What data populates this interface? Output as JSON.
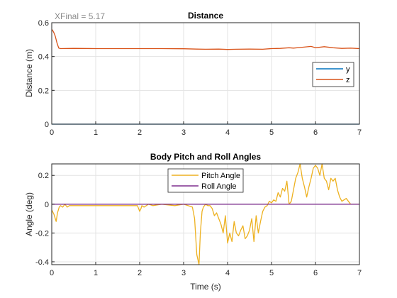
{
  "chart_data": [
    {
      "type": "line",
      "title": "Distance",
      "annotation": "XFinal = 5.17",
      "xlabel": "",
      "ylabel": "Distance (m)",
      "xlim": [
        0,
        7
      ],
      "ylim": [
        0,
        0.6
      ],
      "xticks": [
        "0",
        "1",
        "2",
        "3",
        "4",
        "5",
        "6",
        "7"
      ],
      "yticks": [
        "0",
        "0.2",
        "0.4",
        "0.6"
      ],
      "grid": true,
      "legend_position": "right",
      "series": [
        {
          "name": "y",
          "color": "#0072BD",
          "x": [
            0,
            1,
            2,
            3,
            4,
            5,
            6,
            7
          ],
          "y": [
            0,
            0,
            0,
            0,
            0,
            0,
            0,
            0
          ]
        },
        {
          "name": "z",
          "color": "#D95319",
          "x": [
            0,
            0.02,
            0.05,
            0.08,
            0.12,
            0.16,
            0.2,
            0.5,
            1,
            1.5,
            2,
            2.5,
            3,
            3.3,
            3.5,
            3.8,
            4,
            4.2,
            4.5,
            4.8,
            5,
            5.2,
            5.4,
            5.5,
            5.7,
            5.9,
            6,
            6.2,
            6.4,
            6.6,
            6.8,
            7
          ],
          "y": [
            0.56,
            0.555,
            0.54,
            0.52,
            0.48,
            0.45,
            0.447,
            0.448,
            0.447,
            0.447,
            0.447,
            0.447,
            0.446,
            0.444,
            0.443,
            0.444,
            0.442,
            0.443,
            0.444,
            0.443,
            0.447,
            0.448,
            0.452,
            0.45,
            0.455,
            0.46,
            0.452,
            0.458,
            0.452,
            0.448,
            0.45,
            0.447
          ]
        }
      ]
    },
    {
      "type": "line",
      "title": "Body Pitch and Roll Angles",
      "xlabel": "Time (s)",
      "ylabel": "Angle (deg)",
      "xlim": [
        0,
        7
      ],
      "ylim": [
        -0.42,
        0.28
      ],
      "xticks": [
        "0",
        "1",
        "2",
        "3",
        "4",
        "5",
        "6",
        "7"
      ],
      "yticks": [
        "-0.4",
        "-0.2",
        "0",
        "0.2"
      ],
      "grid": true,
      "legend_position": "top-center",
      "series": [
        {
          "name": "Pitch Angle",
          "color": "#EDB120",
          "x": [
            0,
            0.05,
            0.1,
            0.13,
            0.17,
            0.2,
            0.25,
            0.3,
            0.35,
            0.4,
            0.5,
            0.7,
            1,
            1.5,
            1.95,
            2.0,
            2.03,
            2.05,
            2.1,
            2.2,
            2.3,
            2.5,
            2.8,
            3.0,
            3.1,
            3.2,
            3.25,
            3.3,
            3.35,
            3.38,
            3.42,
            3.45,
            3.5,
            3.55,
            3.6,
            3.65,
            3.7,
            3.75,
            3.8,
            3.85,
            3.9,
            3.95,
            4.0,
            4.05,
            4.1,
            4.15,
            4.2,
            4.25,
            4.3,
            4.35,
            4.4,
            4.45,
            4.5,
            4.55,
            4.6,
            4.65,
            4.7,
            4.75,
            4.8,
            4.85,
            4.9,
            4.95,
            5.0,
            5.05,
            5.1,
            5.15,
            5.2,
            5.25,
            5.3,
            5.35,
            5.4,
            5.45,
            5.5,
            5.55,
            5.6,
            5.65,
            5.7,
            5.75,
            5.8,
            5.85,
            5.9,
            5.95,
            6.0,
            6.05,
            6.1,
            6.15,
            6.2,
            6.25,
            6.3,
            6.35,
            6.4,
            6.45,
            6.5,
            6.55,
            6.6,
            6.7,
            6.8,
            6.9,
            7.0
          ],
          "y": [
            -0.04,
            -0.07,
            -0.12,
            -0.06,
            -0.02,
            -0.01,
            -0.02,
            0.0,
            -0.02,
            -0.01,
            -0.01,
            -0.01,
            -0.01,
            -0.01,
            -0.01,
            -0.05,
            -0.03,
            -0.01,
            -0.02,
            0.0,
            -0.01,
            0.0,
            -0.01,
            0.0,
            -0.01,
            -0.02,
            -0.1,
            -0.35,
            -0.42,
            -0.2,
            -0.05,
            -0.02,
            0.0,
            -0.01,
            -0.01,
            -0.03,
            -0.08,
            -0.06,
            -0.1,
            -0.14,
            -0.2,
            -0.08,
            -0.27,
            -0.2,
            -0.26,
            -0.12,
            -0.2,
            -0.22,
            -0.18,
            -0.15,
            -0.24,
            -0.22,
            -0.18,
            -0.1,
            -0.26,
            -0.08,
            -0.2,
            -0.12,
            -0.05,
            -0.02,
            -0.01,
            0.02,
            0.01,
            0.03,
            0.02,
            0.08,
            0.05,
            0.11,
            0.09,
            0.16,
            0.0,
            0.02,
            0.1,
            0.18,
            0.22,
            0.28,
            0.18,
            0.12,
            0.05,
            0.12,
            0.18,
            0.25,
            0.27,
            0.25,
            0.2,
            0.28,
            0.18,
            0.16,
            0.1,
            0.18,
            0.16,
            0.18,
            0.1,
            0.05,
            0.02,
            0.04,
            0.0,
            0.0,
            0.0
          ]
        },
        {
          "name": "Roll Angle",
          "color": "#7E2F8E",
          "x": [
            0,
            1,
            2,
            3,
            4,
            5,
            6,
            7
          ],
          "y": [
            0,
            0,
            0,
            0,
            0,
            0,
            0,
            0
          ]
        }
      ]
    }
  ]
}
